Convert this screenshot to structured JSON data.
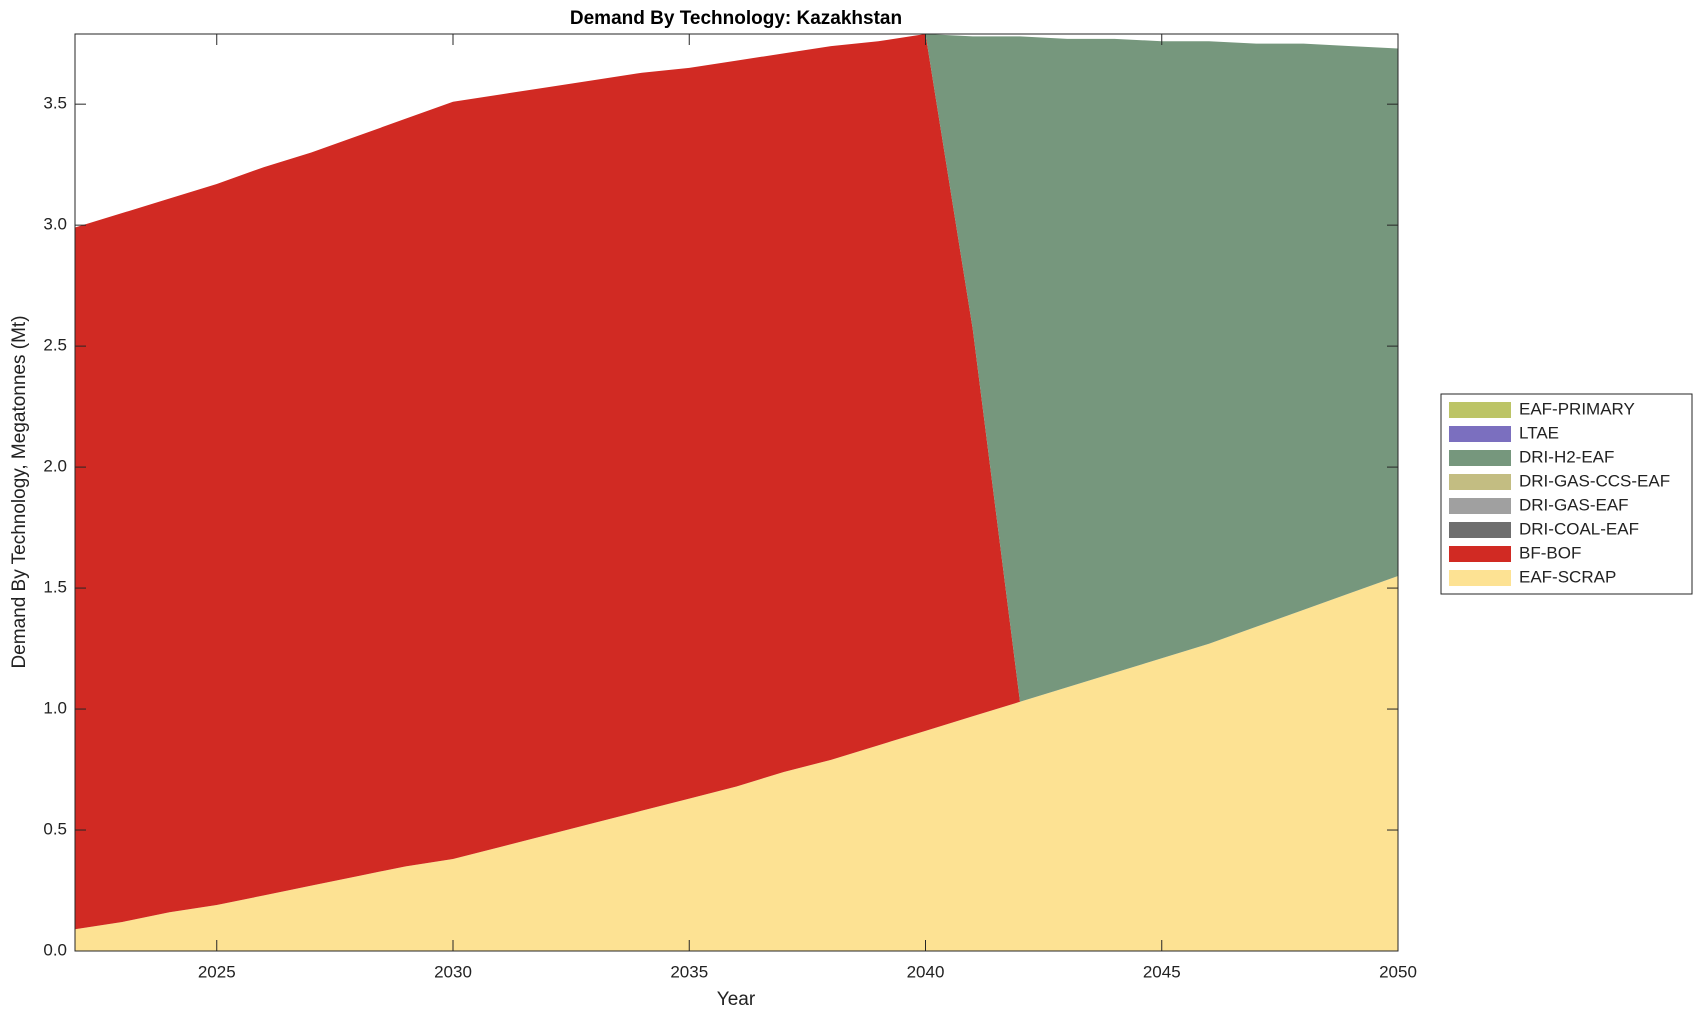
{
  "chart_data": {
    "type": "stacked-area",
    "title": "Demand By Technology: Kazakhstan",
    "x_label": "Year",
    "y_label": "Demand By Technology, Megatonnes (Mt)",
    "x": [
      2022,
      2023,
      2024,
      2025,
      2026,
      2027,
      2028,
      2029,
      2030,
      2031,
      2032,
      2033,
      2034,
      2035,
      2036,
      2037,
      2038,
      2039,
      2040,
      2041,
      2042,
      2043,
      2044,
      2045,
      2046,
      2047,
      2048,
      2049,
      2050
    ],
    "xlim": [
      2022,
      2050
    ],
    "xticks": [
      2025,
      2030,
      2035,
      2040,
      2045,
      2050
    ],
    "ylim": [
      0,
      3.79
    ],
    "yticks": [
      {
        "value": 0,
        "label": "0.0"
      },
      0.5,
      {
        "value": 1,
        "label": "1.0"
      },
      1.5,
      {
        "value": 2,
        "label": "2.0"
      },
      2.5,
      {
        "value": 3,
        "label": "3.0"
      },
      3.5
    ],
    "legend": "right",
    "series": [
      {
        "name": "EAF-SCRAP",
        "color": "#fde293",
        "values": [
          0.09,
          0.12,
          0.16,
          0.19,
          0.23,
          0.27,
          0.31,
          0.35,
          0.38,
          0.43,
          0.48,
          0.53,
          0.58,
          0.63,
          0.68,
          0.74,
          0.79,
          0.85,
          0.91,
          0.97,
          1.03,
          1.09,
          1.15,
          1.21,
          1.27,
          1.34,
          1.41,
          1.48,
          1.55
        ]
      },
      {
        "name": "BF-BOF",
        "color": "#d12a23",
        "values": [
          2.9,
          2.93,
          2.95,
          2.98,
          3.01,
          3.03,
          3.06,
          3.09,
          3.13,
          3.11,
          3.09,
          3.07,
          3.05,
          3.02,
          3.0,
          2.97,
          2.95,
          2.91,
          2.88,
          1.6,
          0,
          0,
          0,
          0,
          0,
          0,
          0,
          0,
          0
        ]
      },
      {
        "name": "DRI-COAL-EAF",
        "color": "#6e6e6e",
        "values": [
          0,
          0,
          0,
          0,
          0,
          0,
          0,
          0,
          0,
          0,
          0,
          0,
          0,
          0,
          0,
          0,
          0,
          0,
          0,
          0,
          0,
          0,
          0,
          0,
          0,
          0,
          0,
          0,
          0
        ]
      },
      {
        "name": "DRI-GAS-EAF",
        "color": "#a0a0a0",
        "values": [
          0,
          0,
          0,
          0,
          0,
          0,
          0,
          0,
          0,
          0,
          0,
          0,
          0,
          0,
          0,
          0,
          0,
          0,
          0,
          0,
          0,
          0,
          0,
          0,
          0,
          0,
          0,
          0,
          0
        ]
      },
      {
        "name": "DRI-GAS-CCS-EAF",
        "color": "#c3bd82",
        "values": [
          0,
          0,
          0,
          0,
          0,
          0,
          0,
          0,
          0,
          0,
          0,
          0,
          0,
          0,
          0,
          0,
          0,
          0,
          0,
          0,
          0,
          0,
          0,
          0,
          0,
          0,
          0,
          0,
          0
        ]
      },
      {
        "name": "DRI-H2-EAF",
        "color": "#76977d",
        "values": [
          0,
          0,
          0,
          0,
          0,
          0,
          0,
          0,
          0,
          0,
          0,
          0,
          0,
          0,
          0,
          0,
          0,
          0,
          0,
          1.21,
          2.75,
          2.68,
          2.62,
          2.55,
          2.49,
          2.41,
          2.34,
          2.26,
          2.18
        ]
      },
      {
        "name": "LTAE",
        "color": "#7b6fbf",
        "values": [
          0,
          0,
          0,
          0,
          0,
          0,
          0,
          0,
          0,
          0,
          0,
          0,
          0,
          0,
          0,
          0,
          0,
          0,
          0,
          0,
          0,
          0,
          0,
          0,
          0,
          0,
          0,
          0,
          0
        ]
      },
      {
        "name": "EAF-PRIMARY",
        "color": "#bcc466",
        "values": [
          0,
          0,
          0,
          0,
          0,
          0,
          0,
          0,
          0,
          0,
          0,
          0,
          0,
          0,
          0,
          0,
          0,
          0,
          0,
          0,
          0,
          0,
          0,
          0,
          0,
          0,
          0,
          0,
          0
        ]
      }
    ]
  }
}
